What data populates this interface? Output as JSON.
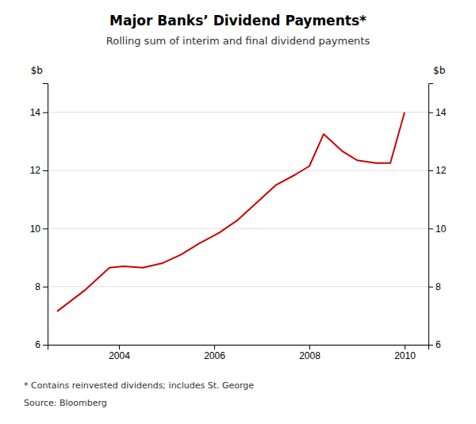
{
  "chart_data": {
    "type": "line",
    "title": "Major Banks’ Dividend Payments*",
    "subtitle": "Rolling sum of interim and final dividend payments",
    "ylabel": "$b",
    "y2label": "$b",
    "annotations": [
      "*  Contains reinvested dividends; includes St. George",
      "Source: Bloomberg"
    ],
    "x": [
      2002.7,
      2003.3,
      2003.8,
      2004.1,
      2004.5,
      2004.9,
      2005.3,
      2005.7,
      2006.1,
      2006.5,
      2006.9,
      2007.3,
      2007.7,
      2008.0,
      2008.3,
      2008.7,
      2009.0,
      2009.4,
      2009.7,
      2010.0
    ],
    "values": [
      7.15,
      7.9,
      8.65,
      8.7,
      8.65,
      8.8,
      9.1,
      9.5,
      9.85,
      10.3,
      10.9,
      11.5,
      11.85,
      12.15,
      13.25,
      12.65,
      12.35,
      12.25,
      12.25,
      14.0
    ],
    "color": "#cc0000",
    "xlim": [
      2002.5,
      2010.5
    ],
    "xticks": [
      2004,
      2006,
      2008,
      2010
    ],
    "ylim": [
      6,
      15
    ],
    "yticks": [
      6,
      8,
      10,
      12,
      14
    ],
    "y2lim": [
      6,
      15
    ],
    "y2ticks": [
      6,
      8,
      10,
      12,
      14
    ],
    "grid": true
  }
}
